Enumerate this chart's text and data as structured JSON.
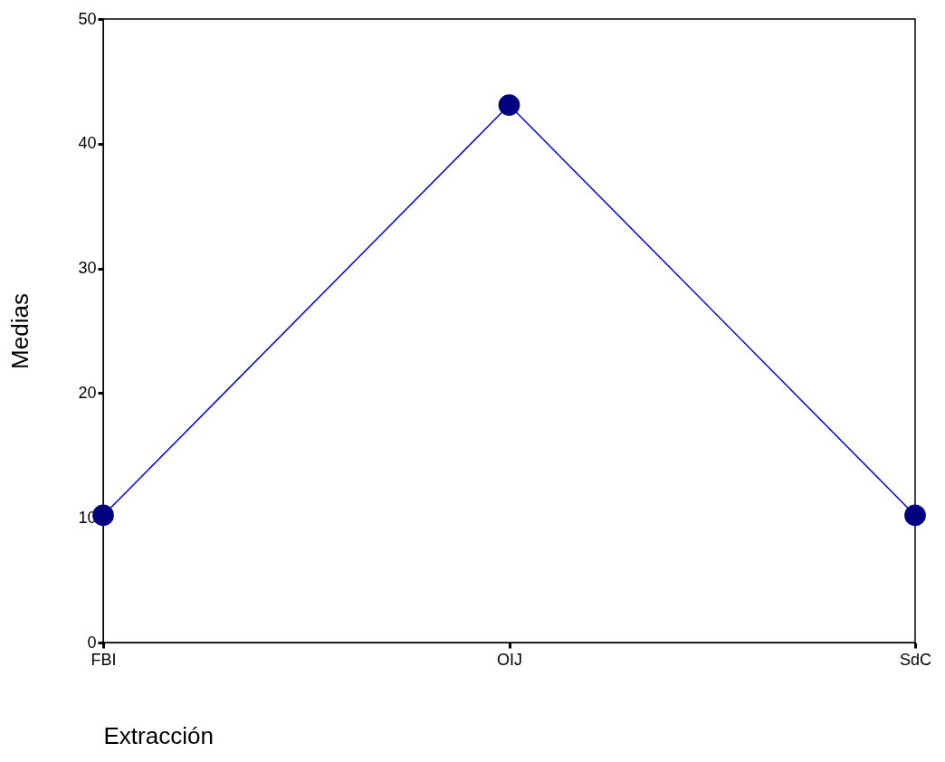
{
  "chart_data": {
    "type": "line",
    "xlabel": "Extracción",
    "ylabel": "Medias",
    "categories": [
      "FBI",
      "OIJ",
      "SdC"
    ],
    "series": [
      {
        "color": "#0000ff",
        "values": [
          10.2,
          43.1,
          10.2
        ]
      }
    ],
    "ylim": [
      0,
      50
    ],
    "yticks": [
      0,
      10,
      20,
      30,
      40,
      50
    ],
    "marker": "circle"
  }
}
